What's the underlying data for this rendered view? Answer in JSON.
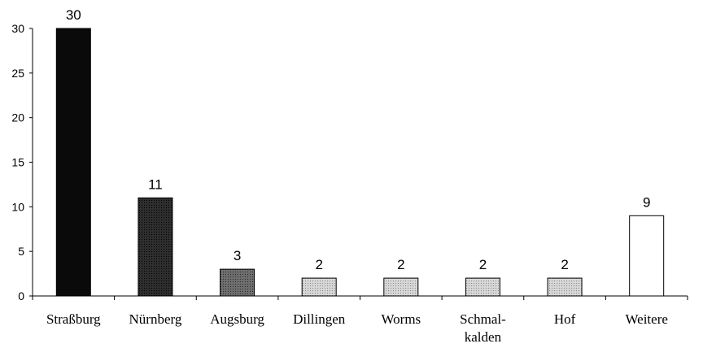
{
  "chart_data": {
    "type": "bar",
    "categories": [
      "Straßburg",
      "Nürnberg",
      "Augsburg",
      "Dillingen",
      "Worms",
      "Schmal-\nkalden",
      "Hof",
      "Weitere"
    ],
    "values": [
      30,
      11,
      3,
      2,
      2,
      2,
      2,
      9
    ],
    "data_labels": [
      "30",
      "11",
      "3",
      "2",
      "2",
      "2",
      "2",
      "9"
    ],
    "ylim": [
      0,
      30
    ],
    "yticks": [
      0,
      5,
      10,
      15,
      20,
      25,
      30
    ],
    "grid": false,
    "legend": "none",
    "colors": [
      "#0a0a0a",
      "#2b2b2b",
      "#5a5a5a",
      "#c4c4c4",
      "#c4c4c4",
      "#c4c4c4",
      "#c4c4c4",
      "#ffffff"
    ]
  }
}
